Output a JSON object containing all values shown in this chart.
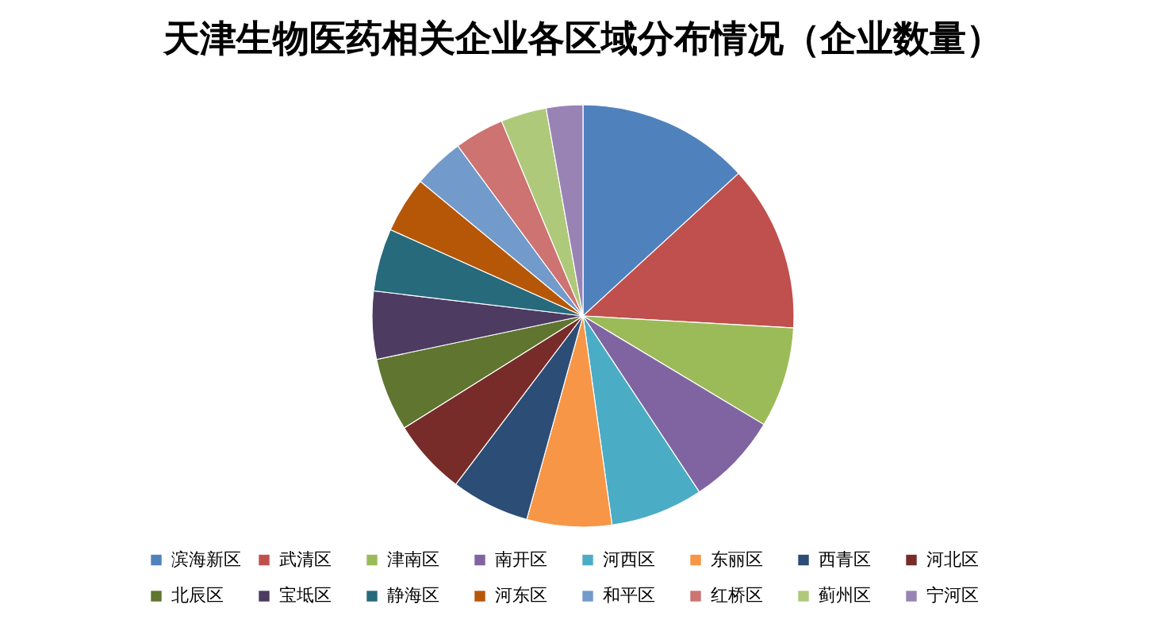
{
  "chart_data": {
    "type": "pie",
    "title": "天津生物医药相关企业各区域分布情况（企业数量）",
    "categories": [
      "滨海新区",
      "武清区",
      "津南区",
      "南开区",
      "河西区",
      "东丽区",
      "西青区",
      "河北区",
      "北辰区",
      "宝坻区",
      "静海区",
      "河东区",
      "和平区",
      "红桥区",
      "蓟州区",
      "宁河区"
    ],
    "values": [
      13.2,
      12.7,
      7.7,
      7.1,
      7.1,
      6.5,
      6.0,
      5.8,
      5.6,
      5.2,
      4.8,
      4.3,
      3.9,
      3.8,
      3.5,
      2.8
    ],
    "colors": [
      "#4f81bd",
      "#c0504d",
      "#9bbb59",
      "#8064a2",
      "#4bacc6",
      "#f79646",
      "#2c4d75",
      "#772c2a",
      "#5f7530",
      "#4d3b62",
      "#276a7c",
      "#b65708",
      "#729aca",
      "#cd7371",
      "#afc97a",
      "#9983b5"
    ],
    "legend": "bottom"
  }
}
